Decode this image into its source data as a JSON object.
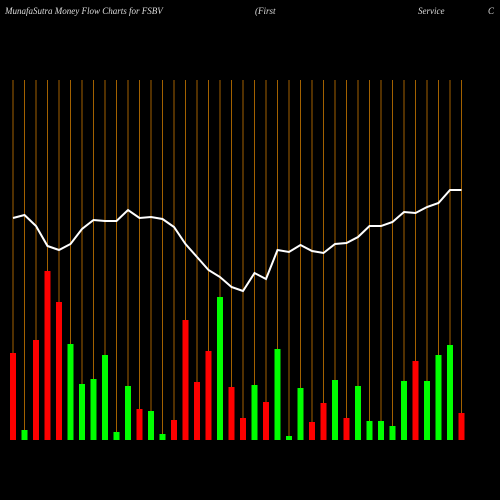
{
  "chart_data": {
    "type": "bar",
    "title": "MunafaSutra  Money Flow  Charts for FSBV",
    "title_parts": [
      "(First",
      "Service",
      "C"
    ],
    "ylim": [
      0,
      360
    ],
    "values": [
      87,
      10,
      100,
      169,
      138,
      96,
      56,
      61,
      85,
      8,
      54,
      31,
      29,
      6,
      20,
      120,
      58,
      89,
      143,
      53,
      22,
      55,
      38,
      91,
      4,
      52,
      18,
      37,
      60,
      22,
      54,
      19,
      19,
      14,
      59,
      79,
      59,
      85,
      95,
      27
    ],
    "colors": [
      "#ff0000",
      "#00ff00",
      "#ff0000",
      "#ff0000",
      "#ff0000",
      "#00ff00",
      "#00ff00",
      "#00ff00",
      "#00ff00",
      "#00ff00",
      "#00ff00",
      "#ff0000",
      "#00ff00",
      "#00ff00",
      "#ff0000",
      "#ff0000",
      "#ff0000",
      "#ff0000",
      "#00ff00",
      "#ff0000",
      "#ff0000",
      "#00ff00",
      "#ff0000",
      "#00ff00",
      "#00ff00",
      "#00ff00",
      "#ff0000",
      "#ff0000",
      "#00ff00",
      "#ff0000",
      "#00ff00",
      "#00ff00",
      "#00ff00",
      "#00ff00",
      "#00ff00",
      "#ff0000",
      "#00ff00",
      "#00ff00",
      "#00ff00",
      "#ff0000"
    ],
    "line": {
      "color": "#ffffff",
      "values": [
        222,
        225,
        214,
        194,
        190,
        196,
        211,
        220,
        219,
        219,
        230,
        222,
        223,
        221,
        213,
        196,
        183,
        170,
        163,
        153,
        149,
        167,
        161,
        190,
        188,
        195,
        189,
        187,
        196,
        197,
        203,
        214,
        214,
        218,
        228,
        227,
        233,
        237,
        250,
        250
      ]
    },
    "grid_color": "#cc7a00"
  }
}
